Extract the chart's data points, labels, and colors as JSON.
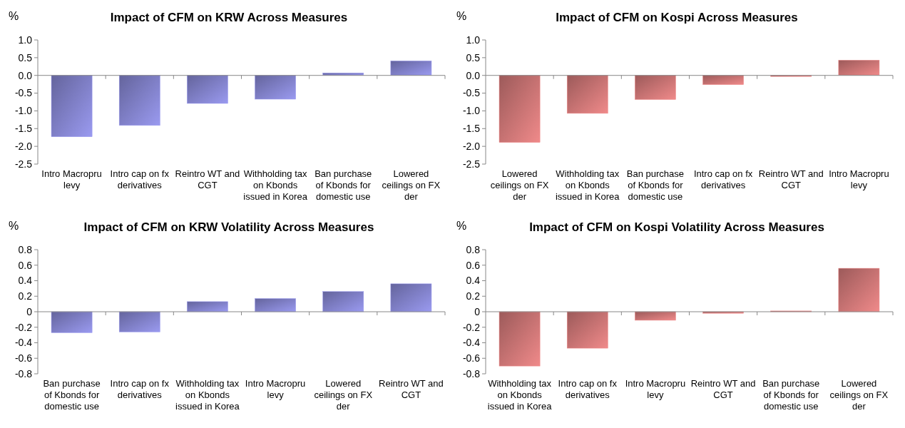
{
  "chart_data": [
    {
      "type": "bar",
      "title": "Impact of CFM on KRW Across Measures",
      "ylabel": "%",
      "categories": [
        "Intro Macropru levy",
        "Intro cap on fx derivatives",
        "Reintro WT and CGT",
        "Withholding tax on Kbonds issued in Korea",
        "Ban purchase of Kbonds for domestic use",
        "Lowered ceilings on FX der"
      ],
      "values": [
        -1.73,
        -1.41,
        -0.79,
        -0.67,
        0.07,
        0.41
      ],
      "color": "#9a9af0",
      "ylim": [
        -2.5,
        1.0
      ],
      "yticks": [
        {
          "value": -2.5,
          "label": "-2.5"
        },
        {
          "value": -2,
          "label": "-2.0"
        },
        {
          "value": -1.5,
          "label": "-1.5"
        },
        {
          "value": -1,
          "label": "-1.0"
        },
        {
          "value": -0.5,
          "label": "-0.5"
        },
        {
          "value": 0,
          "label": "0.0"
        },
        {
          "value": 0.5,
          "label": "0.5"
        },
        {
          "value": 1,
          "label": "1.0"
        }
      ]
    },
    {
      "type": "bar",
      "title": "Impact of CFM on Kospi Across Measures",
      "ylabel": "%",
      "categories": [
        "Lowered ceilings on FX der",
        "Withholding tax on Kbonds issued in Korea",
        "Ban purchase of Kbonds for domestic use",
        "Intro cap on fx derivatives",
        "Reintro WT and CGT",
        "Intro Macropru levy"
      ],
      "values": [
        -1.89,
        -1.07,
        -0.68,
        -0.26,
        -0.03,
        0.43
      ],
      "color": "#f08a8a",
      "ylim": [
        -2.5,
        1.0
      ],
      "yticks": [
        {
          "value": -2.5,
          "label": "-2.5"
        },
        {
          "value": -2,
          "label": "-2.0"
        },
        {
          "value": -1.5,
          "label": "-1.5"
        },
        {
          "value": -1,
          "label": "-1.0"
        },
        {
          "value": -0.5,
          "label": "-0.5"
        },
        {
          "value": 0,
          "label": "0.0"
        },
        {
          "value": 0.5,
          "label": "0.5"
        },
        {
          "value": 1,
          "label": "1.0"
        }
      ]
    },
    {
      "type": "bar",
      "title": "Impact of CFM on KRW Volatility Across Measures",
      "ylabel": "%",
      "categories": [
        "Ban purchase of Kbonds for domestic use",
        "Intro cap on fx derivatives",
        "Withholding tax on Kbonds issued in Korea",
        "Intro Macropru levy",
        "Lowered ceilings on FX der",
        "Reintro WT and CGT"
      ],
      "values": [
        -0.27,
        -0.26,
        0.13,
        0.17,
        0.26,
        0.36
      ],
      "color": "#9a9af0",
      "ylim": [
        -0.8,
        0.8
      ],
      "yticks": [
        -0.8,
        -0.6,
        -0.4,
        -0.2,
        0,
        0.2,
        0.4,
        0.6,
        0.8
      ]
    },
    {
      "type": "bar",
      "title": "Impact of CFM on Kospi Volatility Across Measures",
      "ylabel": "%",
      "categories": [
        "Withholding tax on Kbonds issued in Korea",
        "Intro cap on fx derivatives",
        "Intro Macropru levy",
        "Reintro WT and CGT",
        "Ban purchase of Kbonds for domestic use",
        "Lowered ceilings on FX der"
      ],
      "values": [
        -0.7,
        -0.47,
        -0.11,
        -0.02,
        0.01,
        0.56
      ],
      "color": "#f08a8a",
      "ylim": [
        -0.8,
        0.8
      ],
      "yticks": [
        -0.8,
        -0.6,
        -0.4,
        -0.2,
        0,
        0.2,
        0.4,
        0.6,
        0.8
      ]
    }
  ]
}
